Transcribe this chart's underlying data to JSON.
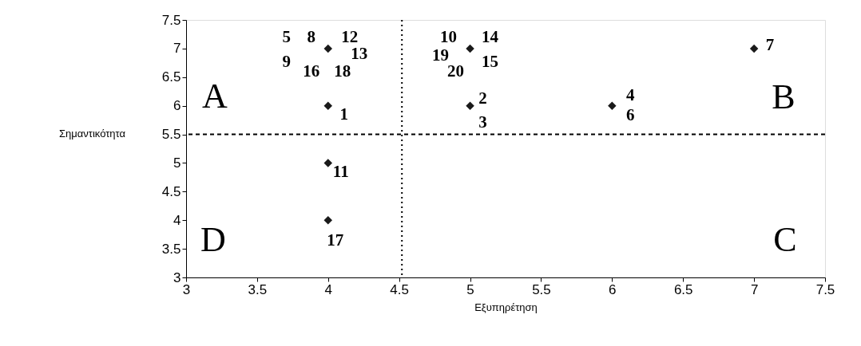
{
  "chart_data": {
    "type": "scatter",
    "xlabel": "Εξυπηρέτηση",
    "ylabel": "Σημαντικότητα",
    "xlim": [
      3,
      7.5
    ],
    "xticks": [
      3,
      3.5,
      4,
      4.5,
      5,
      5.5,
      6,
      6.5,
      7,
      7.5
    ],
    "ylim": [
      3,
      7.5
    ],
    "yticks": [
      3,
      3.5,
      4,
      4.5,
      5,
      5.5,
      6,
      6.5,
      7,
      7.5
    ],
    "grid": false,
    "marker": "diamond",
    "series": [
      {
        "color": "#1a1a1a",
        "x": [
          4,
          4,
          4,
          4,
          5,
          5,
          6,
          7
        ],
        "values": [
          7,
          6,
          5,
          4,
          7,
          6,
          6,
          7
        ]
      }
    ],
    "ref_lines": [
      {
        "axis": "x",
        "value": 4.52,
        "line_style": "dotted",
        "color": "#000000"
      },
      {
        "axis": "y",
        "value": 5.5,
        "line_style": "dashed",
        "color": "#000000"
      }
    ],
    "annotations": [
      {
        "text": "5",
        "x": 4,
        "y": 7
      },
      {
        "text": "8",
        "x": 4,
        "y": 7
      },
      {
        "text": "12",
        "x": 4,
        "y": 7
      },
      {
        "text": "13",
        "x": 4,
        "y": 7
      },
      {
        "text": "9",
        "x": 4,
        "y": 7
      },
      {
        "text": "16",
        "x": 4,
        "y": 7
      },
      {
        "text": "18",
        "x": 4,
        "y": 7
      },
      {
        "text": "1",
        "x": 4,
        "y": 6
      },
      {
        "text": "11",
        "x": 4,
        "y": 5
      },
      {
        "text": "17",
        "x": 4,
        "y": 4
      },
      {
        "text": "10",
        "x": 5,
        "y": 7
      },
      {
        "text": "14",
        "x": 5,
        "y": 7
      },
      {
        "text": "19",
        "x": 5,
        "y": 7
      },
      {
        "text": "15",
        "x": 5,
        "y": 7
      },
      {
        "text": "20",
        "x": 5,
        "y": 7
      },
      {
        "text": "2",
        "x": 5,
        "y": 6
      },
      {
        "text": "3",
        "x": 5,
        "y": 6
      },
      {
        "text": "7",
        "x": 7,
        "y": 7
      },
      {
        "text": "4",
        "x": 6,
        "y": 6
      },
      {
        "text": "6",
        "x": 6,
        "y": 6
      },
      "A",
      "B",
      "C",
      "D"
    ]
  }
}
